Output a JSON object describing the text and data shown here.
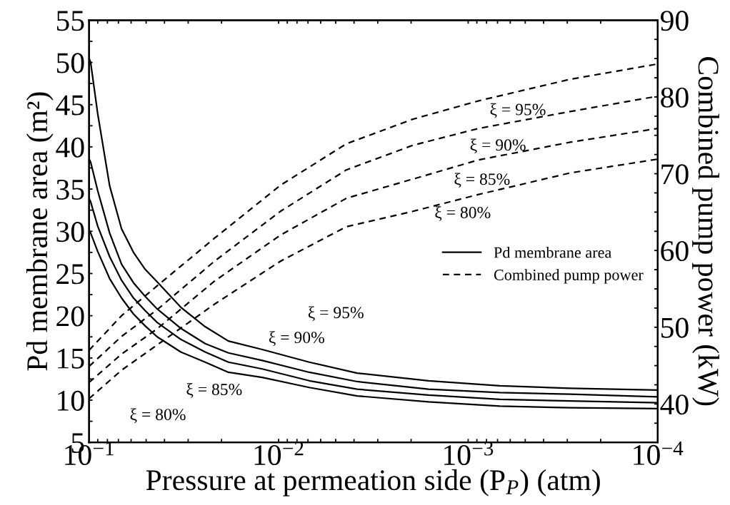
{
  "chart_data": {
    "type": "line",
    "xlabel": "Pressure at permeation side (P$_{P}$) (atm)",
    "ylabel": "Pd membrane area (m²)",
    "y2label": "Combined pump power (kW)",
    "log": "x",
    "grid": false,
    "legend": "center right",
    "marker": "none",
    "xlim": [
      0.1,
      0.0001
    ],
    "xticks": [
      {
        "value": 0.1,
        "label": "10$^{−1}$"
      },
      {
        "value": 0.09,
        "label": null
      },
      {
        "value": 0.08,
        "label": null
      },
      {
        "value": 0.07,
        "label": null
      },
      {
        "value": 0.06,
        "label": null
      },
      {
        "value": 0.05,
        "label": null
      },
      {
        "value": 0.04,
        "label": null
      },
      {
        "value": 0.03,
        "label": null
      },
      {
        "value": 0.02,
        "label": null
      },
      {
        "value": 0.01,
        "label": "10$^{−2}$"
      },
      {
        "value": 0.009,
        "label": null
      },
      {
        "value": 0.008,
        "label": null
      },
      {
        "value": 0.007,
        "label": null
      },
      {
        "value": 0.006,
        "label": null
      },
      {
        "value": 0.005,
        "label": null
      },
      {
        "value": 0.004,
        "label": null
      },
      {
        "value": 0.003,
        "label": null
      },
      {
        "value": 0.002,
        "label": null
      },
      {
        "value": 0.001,
        "label": "10$^{−3}$"
      },
      {
        "value": 0.0009,
        "label": null
      },
      {
        "value": 0.0008,
        "label": null
      },
      {
        "value": 0.0007,
        "label": null
      },
      {
        "value": 0.0006,
        "label": null
      },
      {
        "value": 0.0005,
        "label": null
      },
      {
        "value": 0.0004,
        "label": null
      },
      {
        "value": 0.0003,
        "label": null
      },
      {
        "value": 0.0002,
        "label": null
      },
      {
        "value": 0.0001,
        "label": "10$^{−4}$"
      }
    ],
    "ylim": [
      5,
      55
    ],
    "yticks": [
      5,
      {
        "value": 7.5,
        "label": null
      },
      10,
      {
        "value": 12.5,
        "label": null
      },
      15,
      {
        "value": 17.5,
        "label": null
      },
      20,
      {
        "value": 22.5,
        "label": null
      },
      25,
      {
        "value": 27.5,
        "label": null
      },
      30,
      {
        "value": 32.5,
        "label": null
      },
      35,
      {
        "value": 37.5,
        "label": null
      },
      40,
      {
        "value": 42.5,
        "label": null
      },
      45,
      {
        "value": 47.5,
        "label": null
      },
      50,
      {
        "value": 52.5,
        "label": null
      },
      55
    ],
    "y2lim": [
      35,
      90
    ],
    "y2ticks": [
      {
        "value": 37.5,
        "label": null
      },
      40,
      {
        "value": 42.5,
        "label": null
      },
      {
        "value": 45,
        "label": null
      },
      {
        "value": 47.5,
        "label": null
      },
      50,
      {
        "value": 52.5,
        "label": null
      },
      {
        "value": 55,
        "label": null
      },
      {
        "value": 57.5,
        "label": null
      },
      60,
      {
        "value": 62.5,
        "label": null
      },
      {
        "value": 65,
        "label": null
      },
      {
        "value": 67.5,
        "label": null
      },
      70,
      {
        "value": 72.5,
        "label": null
      },
      {
        "value": 75,
        "label": null
      },
      {
        "value": 77.5,
        "label": null
      },
      80,
      {
        "value": 82.5,
        "label": null
      },
      {
        "value": 85,
        "label": null
      },
      {
        "value": 87.5,
        "label": null
      },
      90
    ],
    "series": [
      {
        "name": "Pd membrane area",
        "color": "#000000",
        "line_style": "solid",
        "x": [
          0.1,
          0.0981,
          0.09,
          0.0779,
          0.0674,
          0.0583,
          0.0506,
          0.0437,
          0.0328,
          0.0244,
          0.0184,
          0.0122,
          0.00689,
          0.00385,
          0.00162,
          0.00068,
          0.00029,
          0.0001
        ],
        "values": [
          50.5,
          50.0,
          43.9,
          35.4,
          30.3,
          27.5,
          25.5,
          24.0,
          21.0,
          18.7,
          17.0,
          16.0,
          14.5,
          13.2,
          12.3,
          11.7,
          11.4,
          11.2
        ]
      },
      {
        "color": "#000000",
        "line_style": "solid",
        "x": [
          0.1,
          0.0981,
          0.09,
          0.0779,
          0.0674,
          0.0583,
          0.0506,
          0.0437,
          0.0328,
          0.0244,
          0.0184,
          0.0122,
          0.00689,
          0.00385,
          0.00162,
          0.00068,
          0.00029,
          0.0001
        ],
        "values": [
          38.6,
          38.2,
          34.8,
          29.8,
          26.1,
          23.9,
          22.3,
          20.8,
          18.5,
          16.7,
          15.6,
          14.7,
          13.3,
          12.2,
          11.3,
          10.9,
          10.7,
          10.4
        ]
      },
      {
        "color": "#000000",
        "line_style": "solid",
        "x": [
          0.1,
          0.0981,
          0.09,
          0.0779,
          0.0674,
          0.0583,
          0.0506,
          0.0437,
          0.0328,
          0.0244,
          0.0184,
          0.0122,
          0.00689,
          0.00385,
          0.00162,
          0.00068,
          0.00029,
          0.0001
        ],
        "values": [
          33.9,
          33.5,
          30.6,
          27.0,
          24.2,
          22.1,
          20.6,
          19.2,
          17.2,
          15.7,
          14.5,
          13.7,
          12.3,
          11.3,
          10.6,
          10.1,
          9.9,
          9.7
        ]
      },
      {
        "color": "#000000",
        "line_style": "solid",
        "x": [
          0.1,
          0.0981,
          0.09,
          0.0779,
          0.0674,
          0.0583,
          0.0506,
          0.0437,
          0.0328,
          0.0244,
          0.0184,
          0.0122,
          0.00689,
          0.00385,
          0.00162,
          0.00068,
          0.00029,
          0.0001
        ],
        "values": [
          30.2,
          29.8,
          27.6,
          24.4,
          22.1,
          20.2,
          18.8,
          17.5,
          15.7,
          14.5,
          13.3,
          12.7,
          11.5,
          10.5,
          9.8,
          9.3,
          9.1,
          9.0
        ]
      },
      {
        "name": "Combined pump power",
        "color": "#000000",
        "line_style": "dashed",
        "axis": "y2",
        "x": [
          0.1,
          0.0674,
          0.0437,
          0.0218,
          0.00978,
          0.00439,
          0.00196,
          0.00088,
          0.00029,
          0.0001
        ],
        "values": [
          47.0,
          51.5,
          55.4,
          61.6,
          68.5,
          73.9,
          77.1,
          79.5,
          82.3,
          84.3
        ]
      },
      {
        "color": "#000000",
        "line_style": "dashed",
        "axis": "y2",
        "x": [
          0.1,
          0.0674,
          0.0437,
          0.0218,
          0.00978,
          0.00439,
          0.00196,
          0.00088,
          0.00029,
          0.0001
        ],
        "values": [
          44.9,
          48.8,
          52.3,
          58.6,
          65.1,
          70.5,
          73.7,
          75.9,
          78.1,
          80.1
        ]
      },
      {
        "color": "#000000",
        "line_style": "dashed",
        "axis": "y2",
        "x": [
          0.1,
          0.0674,
          0.0437,
          0.0218,
          0.00978,
          0.00439,
          0.00196,
          0.00088,
          0.00029,
          0.0001
        ],
        "values": [
          42.8,
          46.5,
          49.8,
          56.0,
          62.0,
          66.8,
          69.3,
          71.8,
          74.1,
          75.9
        ]
      },
      {
        "color": "#000000",
        "line_style": "dashed",
        "axis": "y2",
        "x": [
          0.1,
          0.0674,
          0.0437,
          0.0218,
          0.00978,
          0.00439,
          0.00196,
          0.00088,
          0.00029,
          0.0001
        ],
        "values": [
          40.7,
          44.4,
          47.7,
          53.0,
          58.6,
          63.1,
          65.1,
          67.3,
          70.1,
          71.9
        ]
      }
    ],
    "annotations": [
      "ξ = 95%",
      "ξ = 90%",
      "ξ = 85%",
      "ξ = 80%",
      "ξ = 95%",
      "ξ = 90%",
      "ξ = 85%",
      "ξ = 80%"
    ]
  }
}
